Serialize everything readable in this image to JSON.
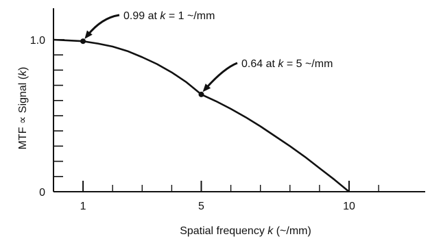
{
  "chart_data": {
    "type": "line",
    "title": "",
    "xlabel_parts": [
      "Spatial frequency ",
      "k",
      " (~/mm)"
    ],
    "ylabel_parts": [
      "MTF ∝ Signal (",
      "k",
      ")"
    ],
    "x_tick_labels": [
      {
        "value": 1,
        "label": "1"
      },
      {
        "value": 5,
        "label": "5"
      },
      {
        "value": 10,
        "label": "10"
      }
    ],
    "y_tick_labels": [
      {
        "value": 0,
        "label": "0"
      },
      {
        "value": 1.0,
        "label": "1.0"
      }
    ],
    "xlim": [
      0,
      12.6
    ],
    "ylim": [
      0,
      1.0
    ],
    "x_minor_ticks": [
      1,
      2,
      3,
      4,
      5,
      6,
      7,
      8,
      9,
      10,
      11
    ],
    "y_minor_ticks": [
      0.1,
      0.2,
      0.3,
      0.4,
      0.5,
      0.6,
      0.7,
      0.8,
      0.9
    ],
    "grid": false,
    "series": [
      {
        "x": [
          0,
          0.5,
          1,
          1.5,
          2,
          2.5,
          3,
          3.5,
          4,
          4.5,
          5,
          5.5,
          6,
          6.5,
          7,
          7.5,
          8,
          8.5,
          9,
          9.5,
          10
        ],
        "values": [
          1.0,
          0.995,
          0.99,
          0.975,
          0.955,
          0.925,
          0.885,
          0.84,
          0.785,
          0.72,
          0.64,
          0.595,
          0.545,
          0.49,
          0.43,
          0.365,
          0.3,
          0.23,
          0.155,
          0.08,
          0.0
        ]
      }
    ],
    "annotations": [
      {
        "x": 1,
        "y": 0.99,
        "parts": [
          "0.99 at ",
          "k",
          " = 1 ~/mm"
        ]
      },
      {
        "x": 5,
        "y": 0.64,
        "parts": [
          "0.64 at ",
          "k",
          " = 5 ~/mm"
        ]
      }
    ]
  },
  "colors": {
    "ink": "#111111",
    "background": "#ffffff"
  }
}
